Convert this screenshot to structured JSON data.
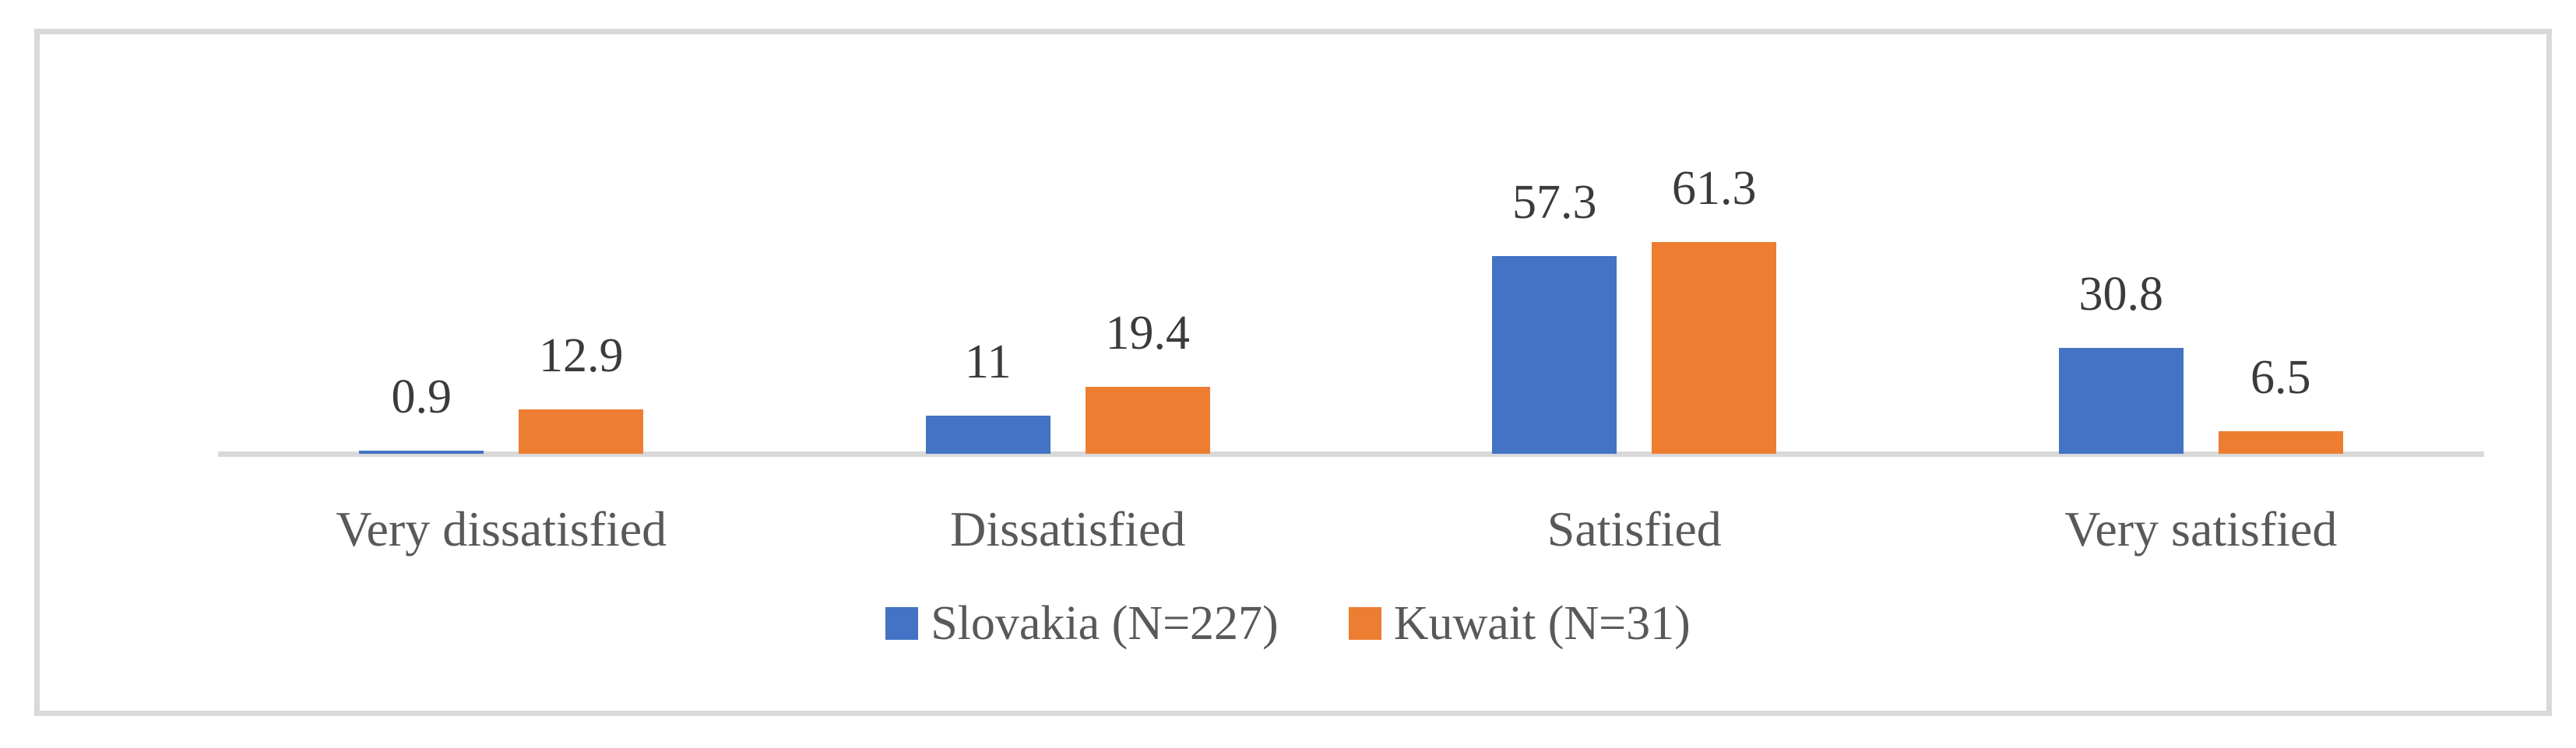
{
  "chart_data": {
    "type": "bar",
    "categories": [
      "Very dissatisfied",
      "Dissatisfied",
      "Satisfied",
      "Very satisfied"
    ],
    "series": [
      {
        "name": "Slovakia (N=227)",
        "values": [
          0.9,
          11,
          57.3,
          30.8
        ],
        "value_labels": [
          "0.9",
          "11",
          "57.3",
          "30.8"
        ],
        "color": "#4472c4"
      },
      {
        "name": "Kuwait (N=31)",
        "values": [
          12.9,
          19.4,
          61.3,
          6.5
        ],
        "value_labels": [
          "12.9",
          "19.4",
          "61.3",
          "6.5"
        ],
        "color": "#ed7d31"
      }
    ],
    "title": "",
    "xlabel": "",
    "ylabel": "",
    "ylim": [
      0,
      70
    ],
    "grid": false,
    "legend_position": "bottom",
    "axis_line_color": "#d9d9d9",
    "frame_color": "#d9d9d9",
    "label_color": "#3b3b3b",
    "category_text_color": "#595959"
  }
}
